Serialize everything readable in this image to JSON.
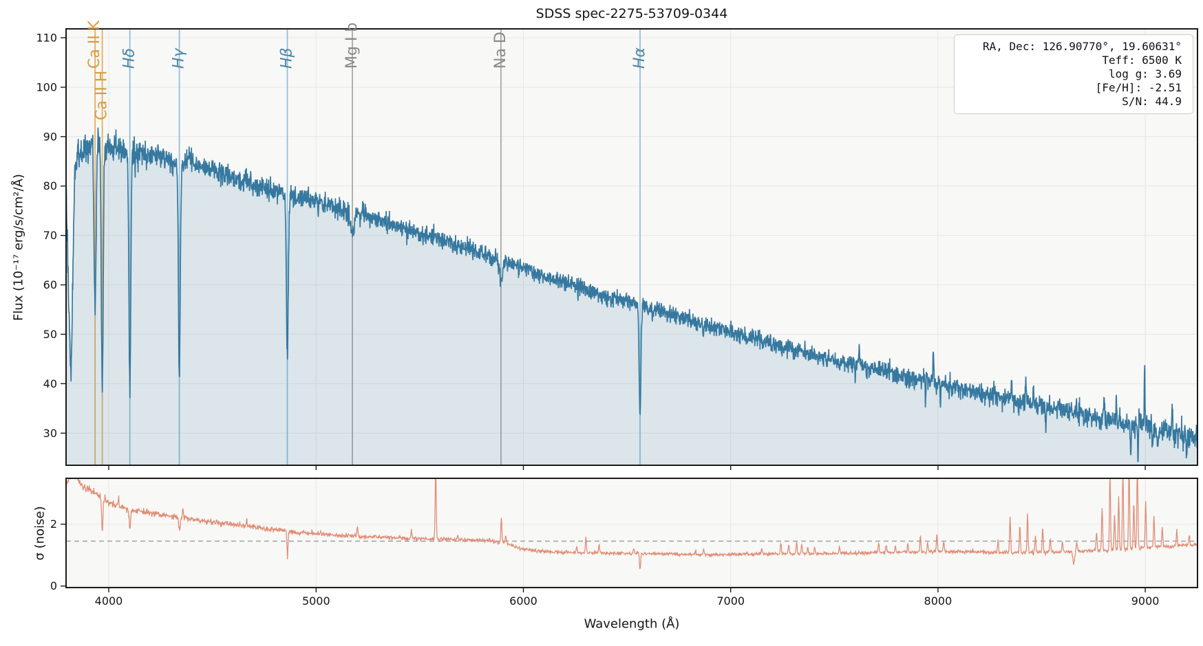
{
  "title": "SDSS spec-2275-53709-0344",
  "info_box": {
    "lines": [
      "RA, Dec: 126.90770°, 19.60631°",
      "Teff: 6500 K",
      "log g: 3.69",
      "[Fe/H]: -2.51",
      "S/N: 44.9"
    ]
  },
  "axes_labels": {
    "flux": "Flux (10⁻¹⁷ erg/s/cm²/Å)",
    "noise": "σ (noise)",
    "wavelength": "Wavelength (Å)"
  },
  "colors": {
    "spectrum_line": "#36789f",
    "spectrum_fill": "rgba(54,120,159,0.15)",
    "noise_line": "#e08e76",
    "balmer_marker": "#93bfd6",
    "balmer_label": "#4d87a8",
    "calcium_marker": "#e5ae63",
    "calcium_label": "#dc9b40",
    "gray_marker": "#a8a8a8",
    "gray_label": "#8a8a8a",
    "axes_bg": "#f8f8f7",
    "grid": "#e6e6e6",
    "spine": "#1a1a1a",
    "dashed_ref": "#999999"
  },
  "chart_data": [
    {
      "type": "line",
      "title": "SDSS spec-2275-53709-0344",
      "ylabel": "Flux (10⁻¹⁷ erg/s/cm²/Å)",
      "xlabel": "Wavelength (Å)",
      "xlim": [
        3794,
        9252
      ],
      "ylim": [
        23.5,
        111.8
      ],
      "x_ticks": [
        4000,
        5000,
        6000,
        7000,
        8000,
        9000
      ],
      "y_ticks": [
        30,
        40,
        50,
        60,
        70,
        80,
        90,
        100,
        110
      ],
      "grid": true,
      "legend": "none",
      "continuum": [
        [
          3794,
          80
        ],
        [
          3806,
          58
        ],
        [
          3818,
          40
        ],
        [
          3826,
          62
        ],
        [
          3836,
          84
        ],
        [
          3852,
          86
        ],
        [
          3875,
          88
        ],
        [
          3900,
          87
        ],
        [
          3925,
          90
        ],
        [
          3955,
          89
        ],
        [
          3985,
          87.5
        ],
        [
          4030,
          88
        ],
        [
          4080,
          87
        ],
        [
          4150,
          86.5
        ],
        [
          4250,
          86
        ],
        [
          4350,
          85.2
        ],
        [
          4450,
          84
        ],
        [
          4550,
          82.6
        ],
        [
          4650,
          81
        ],
        [
          4750,
          79.6
        ],
        [
          4850,
          78.4
        ],
        [
          4950,
          77.6
        ],
        [
          5050,
          76.2
        ],
        [
          5150,
          75
        ],
        [
          5250,
          73.8
        ],
        [
          5350,
          72.6
        ],
        [
          5450,
          71.2
        ],
        [
          5550,
          69.9
        ],
        [
          5650,
          68.4
        ],
        [
          5750,
          67
        ],
        [
          5850,
          65.4
        ],
        [
          5950,
          64
        ],
        [
          6050,
          62.6
        ],
        [
          6150,
          61.2
        ],
        [
          6250,
          59.8
        ],
        [
          6350,
          58.4
        ],
        [
          6450,
          57.2
        ],
        [
          6550,
          56
        ],
        [
          6650,
          54.7
        ],
        [
          6750,
          53.4
        ],
        [
          6850,
          52.2
        ],
        [
          6950,
          51
        ],
        [
          7050,
          49.8
        ],
        [
          7150,
          48.6
        ],
        [
          7250,
          47.5
        ],
        [
          7350,
          46.4
        ],
        [
          7450,
          45.4
        ],
        [
          7550,
          44.4
        ],
        [
          7650,
          43.4
        ],
        [
          7750,
          42.4
        ],
        [
          7850,
          41.4
        ],
        [
          7950,
          40.5
        ],
        [
          8050,
          39.6
        ],
        [
          8150,
          38.7
        ],
        [
          8250,
          37.8
        ],
        [
          8350,
          36.9
        ],
        [
          8450,
          36
        ],
        [
          8550,
          35.1
        ],
        [
          8650,
          34.2
        ],
        [
          8750,
          33.3
        ],
        [
          8850,
          32.4
        ],
        [
          8950,
          31.6
        ],
        [
          9050,
          30.8
        ],
        [
          9150,
          30
        ],
        [
          9252,
          29.2
        ]
      ],
      "absorption_lines": [
        {
          "wavelength": 3933.7,
          "depth": 36,
          "sigma": 5
        },
        {
          "wavelength": 3968.5,
          "depth": 50,
          "sigma": 4.5
        },
        {
          "wavelength": 4101.7,
          "depth": 47,
          "sigma": 4.5
        },
        {
          "wavelength": 4340.5,
          "depth": 43,
          "sigma": 4.5
        },
        {
          "wavelength": 4861.3,
          "depth": 33,
          "sigma": 4.5
        },
        {
          "wavelength": 5175.0,
          "depth": 4,
          "sigma": 9
        },
        {
          "wavelength": 5892.0,
          "depth": 4,
          "sigma": 7
        },
        {
          "wavelength": 6562.8,
          "depth": 23,
          "sigma": 4
        }
      ],
      "sky_residual_spikes": [
        [
          6868,
          -2.5,
          3
        ],
        [
          7600,
          -2.5,
          2
        ],
        [
          7620,
          3,
          2
        ],
        [
          7940,
          -4,
          2
        ],
        [
          7978,
          7.5,
          2
        ],
        [
          8012,
          -4,
          2
        ],
        [
          8355,
          4,
          2
        ],
        [
          8390,
          -3,
          2
        ],
        [
          8424,
          6,
          2
        ],
        [
          8460,
          4,
          2
        ],
        [
          8520,
          -4,
          2
        ],
        [
          8802,
          5,
          2
        ],
        [
          8860,
          4,
          2
        ],
        [
          8930,
          -6,
          2
        ],
        [
          8965,
          -7,
          2
        ],
        [
          8997,
          11,
          2
        ],
        [
          9035,
          -5,
          2
        ],
        [
          9060,
          -5,
          2
        ],
        [
          9130,
          6,
          2
        ],
        [
          9200,
          -4,
          2
        ]
      ],
      "noise_sigma_profile": [
        [
          3794,
          1.7
        ],
        [
          3900,
          1.6
        ],
        [
          4200,
          1.3
        ],
        [
          4700,
          1.05
        ],
        [
          5200,
          0.95
        ],
        [
          6000,
          0.85
        ],
        [
          6800,
          0.85
        ],
        [
          7600,
          0.95
        ],
        [
          8300,
          1.05
        ],
        [
          9252,
          1.25
        ]
      ],
      "line_markers": [
        {
          "label": "Ca II K",
          "wavelength": 3933.7,
          "family": "calcium",
          "italic": false,
          "stagger": false
        },
        {
          "label": "Ca II H",
          "wavelength": 3968.5,
          "family": "calcium",
          "italic": false,
          "stagger": true
        },
        {
          "label": "Hδ",
          "wavelength": 4101.7,
          "family": "balmer",
          "italic": true,
          "stagger": false
        },
        {
          "label": "Hγ",
          "wavelength": 4340.5,
          "family": "balmer",
          "italic": true,
          "stagger": false
        },
        {
          "label": "Hβ",
          "wavelength": 4861.3,
          "family": "balmer",
          "italic": true,
          "stagger": false
        },
        {
          "label": "Mg I b",
          "wavelength": 5175.0,
          "family": "gray",
          "italic": false,
          "stagger": false
        },
        {
          "label": "Na D",
          "wavelength": 5892.0,
          "family": "gray",
          "italic": false,
          "stagger": false
        },
        {
          "label": "Hα",
          "wavelength": 6562.8,
          "family": "balmer",
          "italic": true,
          "stagger": false
        }
      ]
    },
    {
      "type": "line",
      "ylabel": "σ (noise)",
      "xlim": [
        3794,
        9252
      ],
      "ylim": [
        -0.05,
        3.48
      ],
      "y_ticks": [
        0,
        2
      ],
      "grid": true,
      "reference_dashed_y": 1.45,
      "baseline": [
        [
          3794,
          3.3
        ],
        [
          3812,
          3.55
        ],
        [
          3835,
          3.62
        ],
        [
          3865,
          3.28
        ],
        [
          3900,
          3.12
        ],
        [
          3940,
          2.95
        ],
        [
          3990,
          2.72
        ],
        [
          4050,
          2.56
        ],
        [
          4150,
          2.42
        ],
        [
          4250,
          2.3
        ],
        [
          4350,
          2.2
        ],
        [
          4500,
          2.06
        ],
        [
          4650,
          1.95
        ],
        [
          4800,
          1.82
        ],
        [
          4950,
          1.7
        ],
        [
          5100,
          1.64
        ],
        [
          5250,
          1.59
        ],
        [
          5400,
          1.56
        ],
        [
          5550,
          1.52
        ],
        [
          5700,
          1.5
        ],
        [
          5850,
          1.47
        ],
        [
          5920,
          1.38
        ],
        [
          5970,
          1.24
        ],
        [
          6050,
          1.14
        ],
        [
          6150,
          1.1
        ],
        [
          6300,
          1.07
        ],
        [
          6500,
          1.05
        ],
        [
          6700,
          1.04
        ],
        [
          6900,
          1.0
        ],
        [
          7100,
          1.04
        ],
        [
          7300,
          1.04
        ],
        [
          7500,
          1.05
        ],
        [
          7700,
          1.08
        ],
        [
          7900,
          1.1
        ],
        [
          8100,
          1.12
        ],
        [
          8300,
          1.08
        ],
        [
          8500,
          1.08
        ],
        [
          8700,
          1.14
        ],
        [
          8900,
          1.18
        ],
        [
          9000,
          1.24
        ],
        [
          9100,
          1.28
        ],
        [
          9252,
          1.33
        ]
      ],
      "spikes": [
        [
          4046,
          0.28
        ],
        [
          4358,
          0.35
        ],
        [
          4665,
          0.2
        ],
        [
          5199,
          0.3
        ],
        [
          5460,
          0.25
        ],
        [
          5577,
          2.3
        ],
        [
          5683,
          0.15
        ],
        [
          5894,
          0.8
        ],
        [
          5915,
          0.25
        ],
        [
          6257,
          0.2
        ],
        [
          6302,
          0.5
        ],
        [
          6365,
          0.25
        ],
        [
          6533,
          0.15
        ],
        [
          6830,
          0.15
        ],
        [
          6870,
          0.2
        ],
        [
          7150,
          0.15
        ],
        [
          7242,
          0.35
        ],
        [
          7280,
          0.3
        ],
        [
          7318,
          0.4
        ],
        [
          7343,
          0.3
        ],
        [
          7372,
          0.25
        ],
        [
          7405,
          0.2
        ],
        [
          7525,
          0.2
        ],
        [
          7714,
          0.3
        ],
        [
          7750,
          0.25
        ],
        [
          7795,
          0.2
        ],
        [
          7855,
          0.25
        ],
        [
          7915,
          0.5
        ],
        [
          7950,
          0.3
        ],
        [
          7995,
          0.55
        ],
        [
          8028,
          0.3
        ],
        [
          8290,
          0.4
        ],
        [
          8348,
          1.15
        ],
        [
          8395,
          0.85
        ],
        [
          8432,
          1.2
        ],
        [
          8470,
          0.55
        ],
        [
          8505,
          0.8
        ],
        [
          8542,
          0.45
        ],
        [
          8600,
          0.3
        ],
        [
          8670,
          0.3
        ],
        [
          8765,
          0.6
        ],
        [
          8792,
          1.4
        ],
        [
          8830,
          2.5
        ],
        [
          8852,
          1.1
        ],
        [
          8872,
          1.7
        ],
        [
          8892,
          2.6
        ],
        [
          8922,
          2.8
        ],
        [
          8945,
          1.5
        ],
        [
          8962,
          2.7
        ],
        [
          9002,
          1.5
        ],
        [
          9042,
          1.0
        ],
        [
          9082,
          0.6
        ],
        [
          9152,
          0.5
        ],
        [
          9212,
          0.35
        ]
      ],
      "dips": [
        [
          3969,
          1.1,
          3
        ],
        [
          4102,
          0.6,
          4
        ],
        [
          4341,
          0.35,
          4
        ],
        [
          4862,
          0.85,
          2.5
        ],
        [
          6563,
          0.55,
          2.5
        ],
        [
          8655,
          0.4,
          4
        ]
      ]
    }
  ]
}
